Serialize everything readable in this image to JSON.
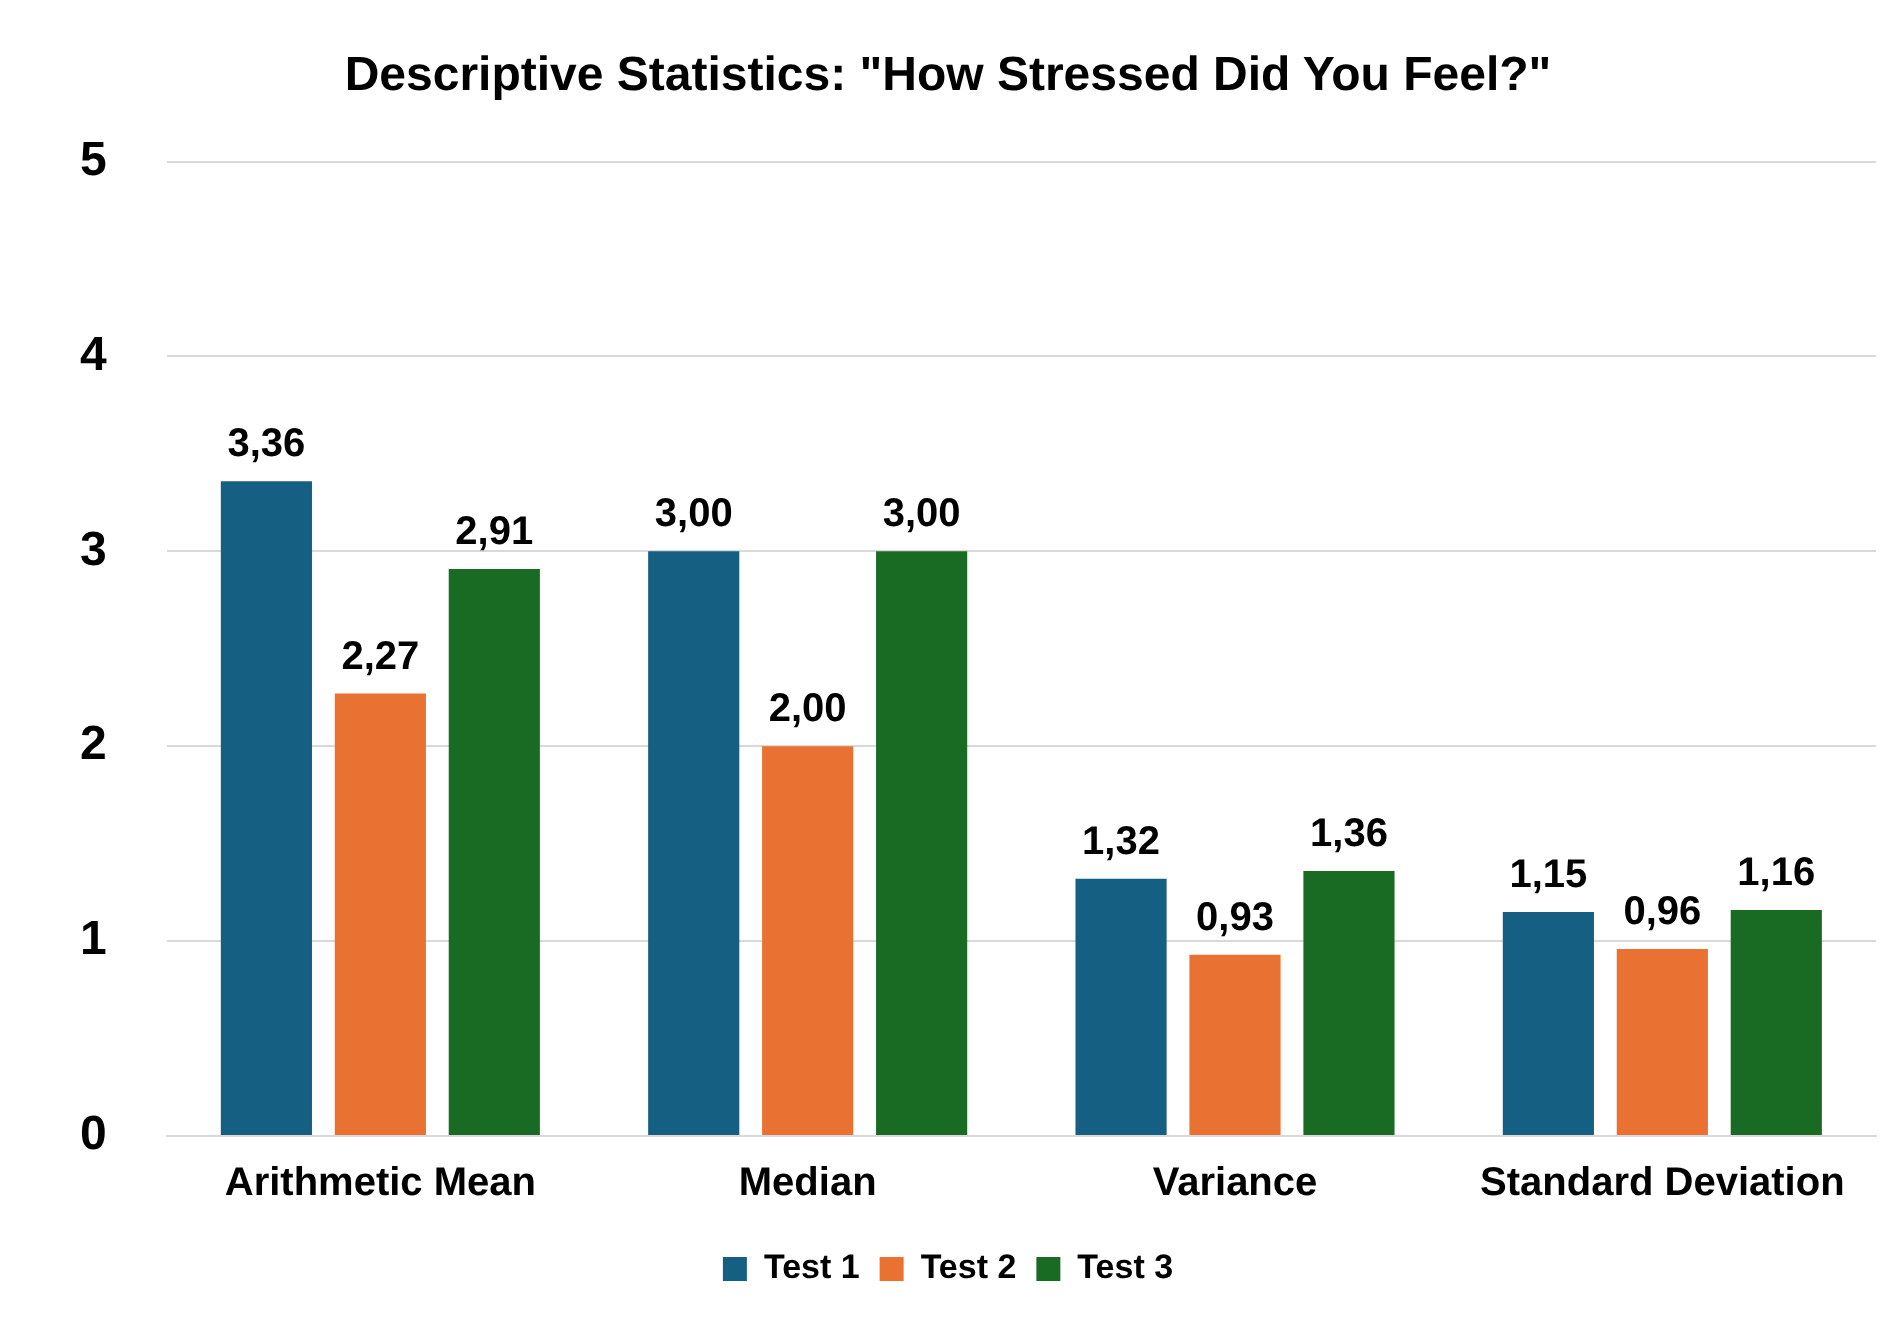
{
  "chart_data": {
    "type": "bar",
    "title": "Descriptive Statistics: \"How Stressed Did You Feel?\"",
    "categories": [
      "Arithmetic Mean",
      "Median",
      "Variance",
      "Standard Deviation"
    ],
    "series": [
      {
        "name": "Test 1",
        "color": "#156082",
        "values": [
          3.36,
          3.0,
          1.32,
          1.15
        ],
        "value_labels": [
          "3,36",
          "3,00",
          "1,32",
          "1,15"
        ]
      },
      {
        "name": "Test 2",
        "color": "#e97132",
        "values": [
          2.27,
          2.0,
          0.93,
          0.96
        ],
        "value_labels": [
          "2,27",
          "2,00",
          "0,93",
          "0,96"
        ]
      },
      {
        "name": "Test 3",
        "color": "#196b24",
        "values": [
          2.91,
          3.0,
          1.36,
          1.16
        ],
        "value_labels": [
          "2,91",
          "3,00",
          "1,36",
          "1,16"
        ]
      }
    ],
    "ylim": [
      0,
      5
    ],
    "yticks": [
      0,
      1,
      2,
      3,
      4,
      5
    ],
    "grid": "y",
    "legend": "bottom"
  }
}
